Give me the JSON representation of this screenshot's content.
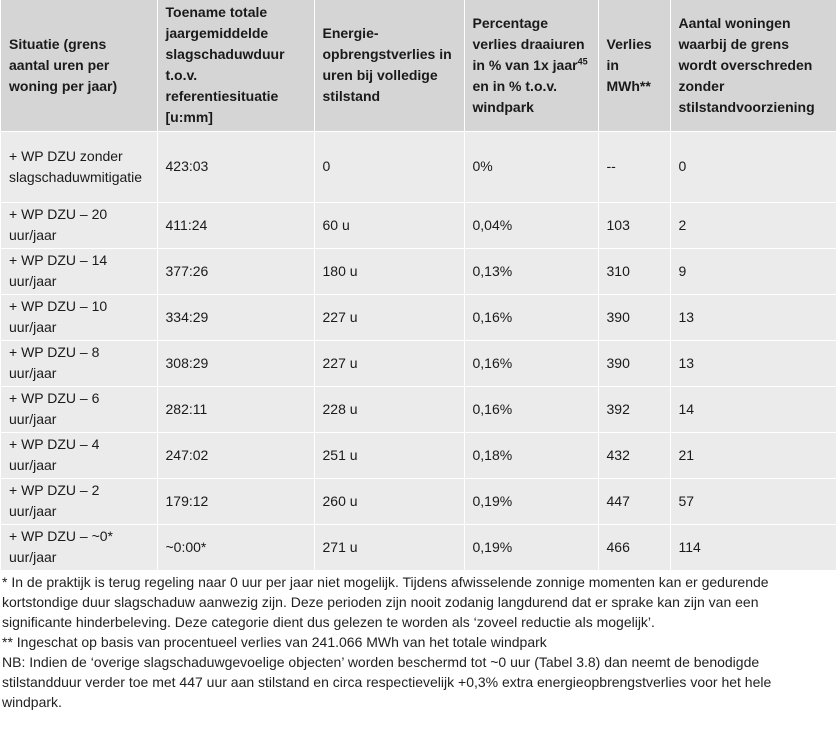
{
  "table": {
    "headers": {
      "col1": "Situatie (grens aantal uren per woning per jaar)",
      "col2": "Toename totale jaargemiddelde slagschaduwduur t.o.v. referentiesituatie [u:mm]",
      "col3": "Energie-opbrengstverlies in uren bij volledige stilstand",
      "col4_a": "Percentage verlies draaiuren in % van 1x jaar",
      "col4_sup": "45",
      "col4_b": " en in % t.o.v. windpark",
      "col5": "Verlies in MWh**",
      "col6": "Aantal woningen waarbij de grens wordt overschreden zonder stilstandvoorziening"
    },
    "rows": [
      {
        "situatie": "+ WP DZU zonder slagschaduwmitigatie",
        "toename": "423:03",
        "uren": "0",
        "percentage": "0%",
        "mwh": "--",
        "woningen": "0"
      },
      {
        "situatie": "+ WP DZU – 20 uur/jaar",
        "toename": "411:24",
        "uren": "60 u",
        "percentage": "0,04%",
        "mwh": "103",
        "woningen": "2"
      },
      {
        "situatie": "+ WP DZU – 14 uur/jaar",
        "toename": "377:26",
        "uren": "180 u",
        "percentage": "0,13%",
        "mwh": "310",
        "woningen": "9"
      },
      {
        "situatie": "+ WP DZU – 10 uur/jaar",
        "toename": "334:29",
        "uren": "227 u",
        "percentage": "0,16%",
        "mwh": "390",
        "woningen": "13"
      },
      {
        "situatie": "+ WP DZU – 8 uur/jaar",
        "toename": "308:29",
        "uren": "227 u",
        "percentage": "0,16%",
        "mwh": "390",
        "woningen": "13"
      },
      {
        "situatie": "+ WP DZU – 6 uur/jaar",
        "toename": "282:11",
        "uren": "228 u",
        "percentage": "0,16%",
        "mwh": "392",
        "woningen": "14"
      },
      {
        "situatie": "+ WP DZU – 4 uur/jaar",
        "toename": "247:02",
        "uren": "251 u",
        "percentage": "0,18%",
        "mwh": "432",
        "woningen": "21"
      },
      {
        "situatie": "+ WP DZU – 2 uur/jaar",
        "toename": "179:12",
        "uren": "260 u",
        "percentage": "0,19%",
        "mwh": "447",
        "woningen": "57"
      },
      {
        "situatie": "+ WP DZU – ~0* uur/jaar",
        "toename": "~0:00*",
        "uren": "271 u",
        "percentage": "0,19%",
        "mwh": "466",
        "woningen": "114"
      }
    ]
  },
  "notes": {
    "footnote_1": "* In de praktijk is terug regeling naar 0 uur per jaar niet mogelijk. Tijdens afwisselende zonnige momenten kan er gedurende kortstondige duur slagschaduw aanwezig zijn. Deze perioden zijn nooit zodanig langdurend dat er sprake kan zijn van een significante hinderbeleving. Deze categorie dient dus gelezen te worden als ‘zoveel reductie als mogelijk’.",
    "footnote_2": "** Ingeschat op basis van procentueel verlies van 241.066 MWh van het totale windpark",
    "nb": "NB: Indien de ‘overige slagschaduwgevoelige objecten’ worden beschermd tot ~0 uur (Tabel 3.8) dan neemt de benodigde stilstandduur verder toe met 447 uur aan stilstand en circa respectievelijk +0,3% extra energieopbrengstverlies voor het hele windpark."
  }
}
